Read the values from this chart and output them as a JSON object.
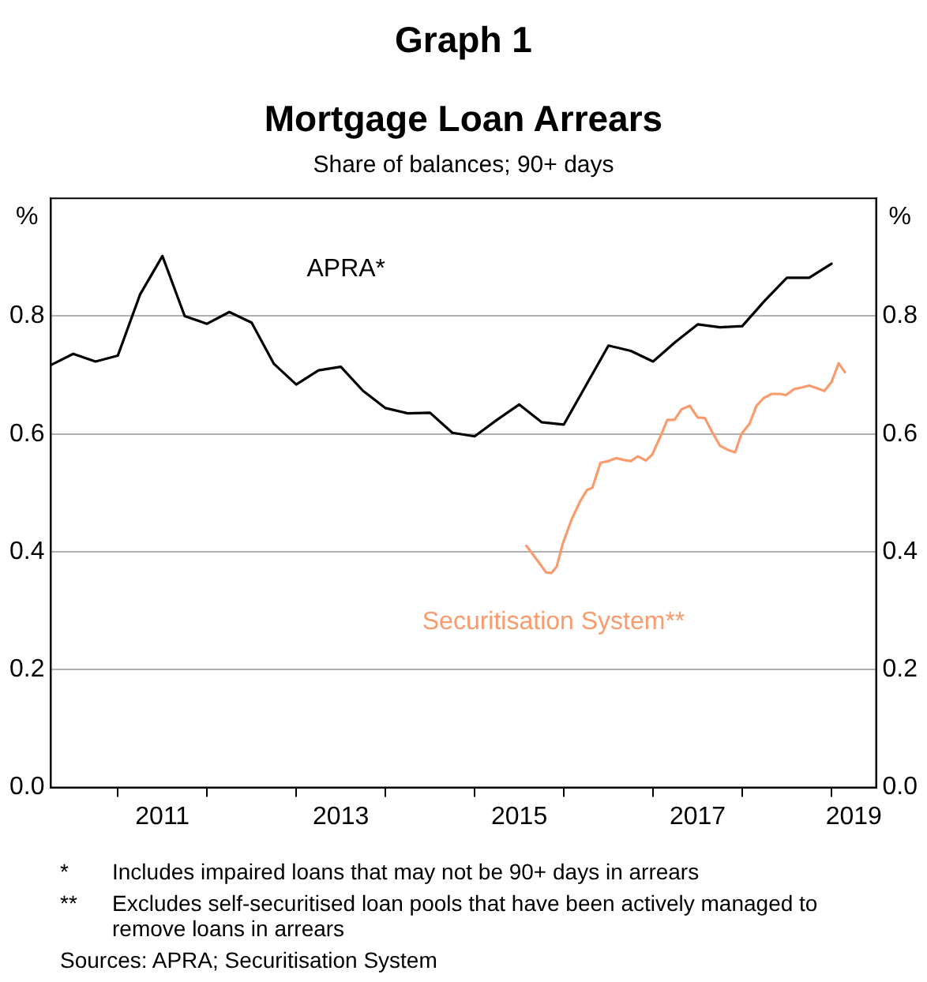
{
  "chart_data": {
    "type": "line",
    "title": "Graph 1",
    "subtitle": "Mortgage Loan Arrears",
    "annotations": [
      "Share of balances; 90+ days",
      "* Includes impaired loans that may not be 90+ days in arrears",
      "** Excludes self-securitised loan pools that have been actively managed to remove loans in arrears",
      "Sources: APRA; Securitisation System"
    ],
    "ylabel": "%",
    "y2label": "%",
    "xlim": [
      2010.25,
      2019.5
    ],
    "xticks": [
      {
        "value": 2011,
        "label": null
      },
      {
        "value": 2011.5,
        "label": "2011"
      },
      {
        "value": 2012,
        "label": null
      },
      {
        "value": 2013,
        "label": null
      },
      {
        "value": 2013.5,
        "label": "2013"
      },
      {
        "value": 2014,
        "label": null
      },
      {
        "value": 2015,
        "label": null
      },
      {
        "value": 2015.5,
        "label": "2015"
      },
      {
        "value": 2016,
        "label": null
      },
      {
        "value": 2017,
        "label": null
      },
      {
        "value": 2017.5,
        "label": "2017"
      },
      {
        "value": 2018,
        "label": null
      },
      {
        "value": 2019,
        "label": null
      },
      {
        "value": 2019.25,
        "label": "2019"
      }
    ],
    "ylim": [
      0,
      1
    ],
    "yticks": [
      {
        "value": 0,
        "label": "0.0"
      },
      {
        "value": 0.2,
        "label": "0.2"
      },
      {
        "value": 0.4,
        "label": "0.4"
      },
      {
        "value": 0.6,
        "label": "0.6"
      },
      {
        "value": 0.8,
        "label": "0.8"
      }
    ],
    "y2lim": [
      0,
      1
    ],
    "y2ticks": [
      {
        "value": 0,
        "label": "0.0"
      },
      {
        "value": 0.2,
        "label": "0.2"
      },
      {
        "value": 0.4,
        "label": "0.4"
      },
      {
        "value": 0.6,
        "label": "0.6"
      },
      {
        "value": 0.8,
        "label": "0.8"
      }
    ],
    "grid": "y",
    "legend": false,
    "marker": "none",
    "line_style": "solid",
    "series": [
      {
        "name": "APRA*",
        "color": "#000000",
        "x": [
          2010.25,
          2010.5,
          2010.75,
          2011,
          2011.25,
          2011.5,
          2011.75,
          2012,
          2012.25,
          2012.5,
          2012.75,
          2013,
          2013.25,
          2013.5,
          2013.75,
          2014,
          2014.25,
          2014.5,
          2014.75,
          2015,
          2015.25,
          2015.5,
          2015.75,
          2016,
          2016.25,
          2016.5,
          2016.75,
          2017,
          2017.25,
          2017.5,
          2017.75,
          2018,
          2018.25,
          2018.5,
          2018.75,
          2019
        ],
        "values": [
          0.717,
          0.736,
          0.723,
          0.733,
          0.837,
          0.902,
          0.8,
          0.787,
          0.807,
          0.789,
          0.719,
          0.684,
          0.708,
          0.714,
          0.673,
          0.644,
          0.635,
          0.636,
          0.602,
          0.596,
          0.624,
          0.65,
          0.62,
          0.616,
          0.683,
          0.75,
          0.741,
          0.723,
          0.756,
          0.786,
          0.781,
          0.783,
          0.826,
          0.865,
          0.865,
          0.889
        ]
      },
      {
        "name": "Securitisation System**",
        "color": "#fa9b6e",
        "x": [
          2015.58,
          2015.71,
          2015.8,
          2015.86,
          2015.92,
          2015.99,
          2016.09,
          2016.18,
          2016.26,
          2016.32,
          2016.41,
          2016.5,
          2016.59,
          2016.67,
          2016.75,
          2016.83,
          2016.92,
          2016.99,
          2017.08,
          2017.16,
          2017.24,
          2017.32,
          2017.41,
          2017.5,
          2017.58,
          2017.66,
          2017.75,
          2017.84,
          2017.92,
          2017.99,
          2018.08,
          2018.16,
          2018.24,
          2018.33,
          2018.42,
          2018.49,
          2018.58,
          2018.67,
          2018.75,
          2018.83,
          2018.92,
          2019,
          2019.08,
          2019.15
        ],
        "values": [
          0.41,
          0.384,
          0.365,
          0.364,
          0.375,
          0.415,
          0.456,
          0.485,
          0.505,
          0.509,
          0.551,
          0.554,
          0.559,
          0.556,
          0.554,
          0.562,
          0.555,
          0.565,
          0.595,
          0.624,
          0.624,
          0.642,
          0.648,
          0.628,
          0.627,
          0.604,
          0.58,
          0.573,
          0.569,
          0.6,
          0.617,
          0.648,
          0.661,
          0.668,
          0.668,
          0.666,
          0.676,
          0.679,
          0.682,
          0.678,
          0.673,
          0.688,
          0.72,
          0.705
        ]
      }
    ]
  }
}
